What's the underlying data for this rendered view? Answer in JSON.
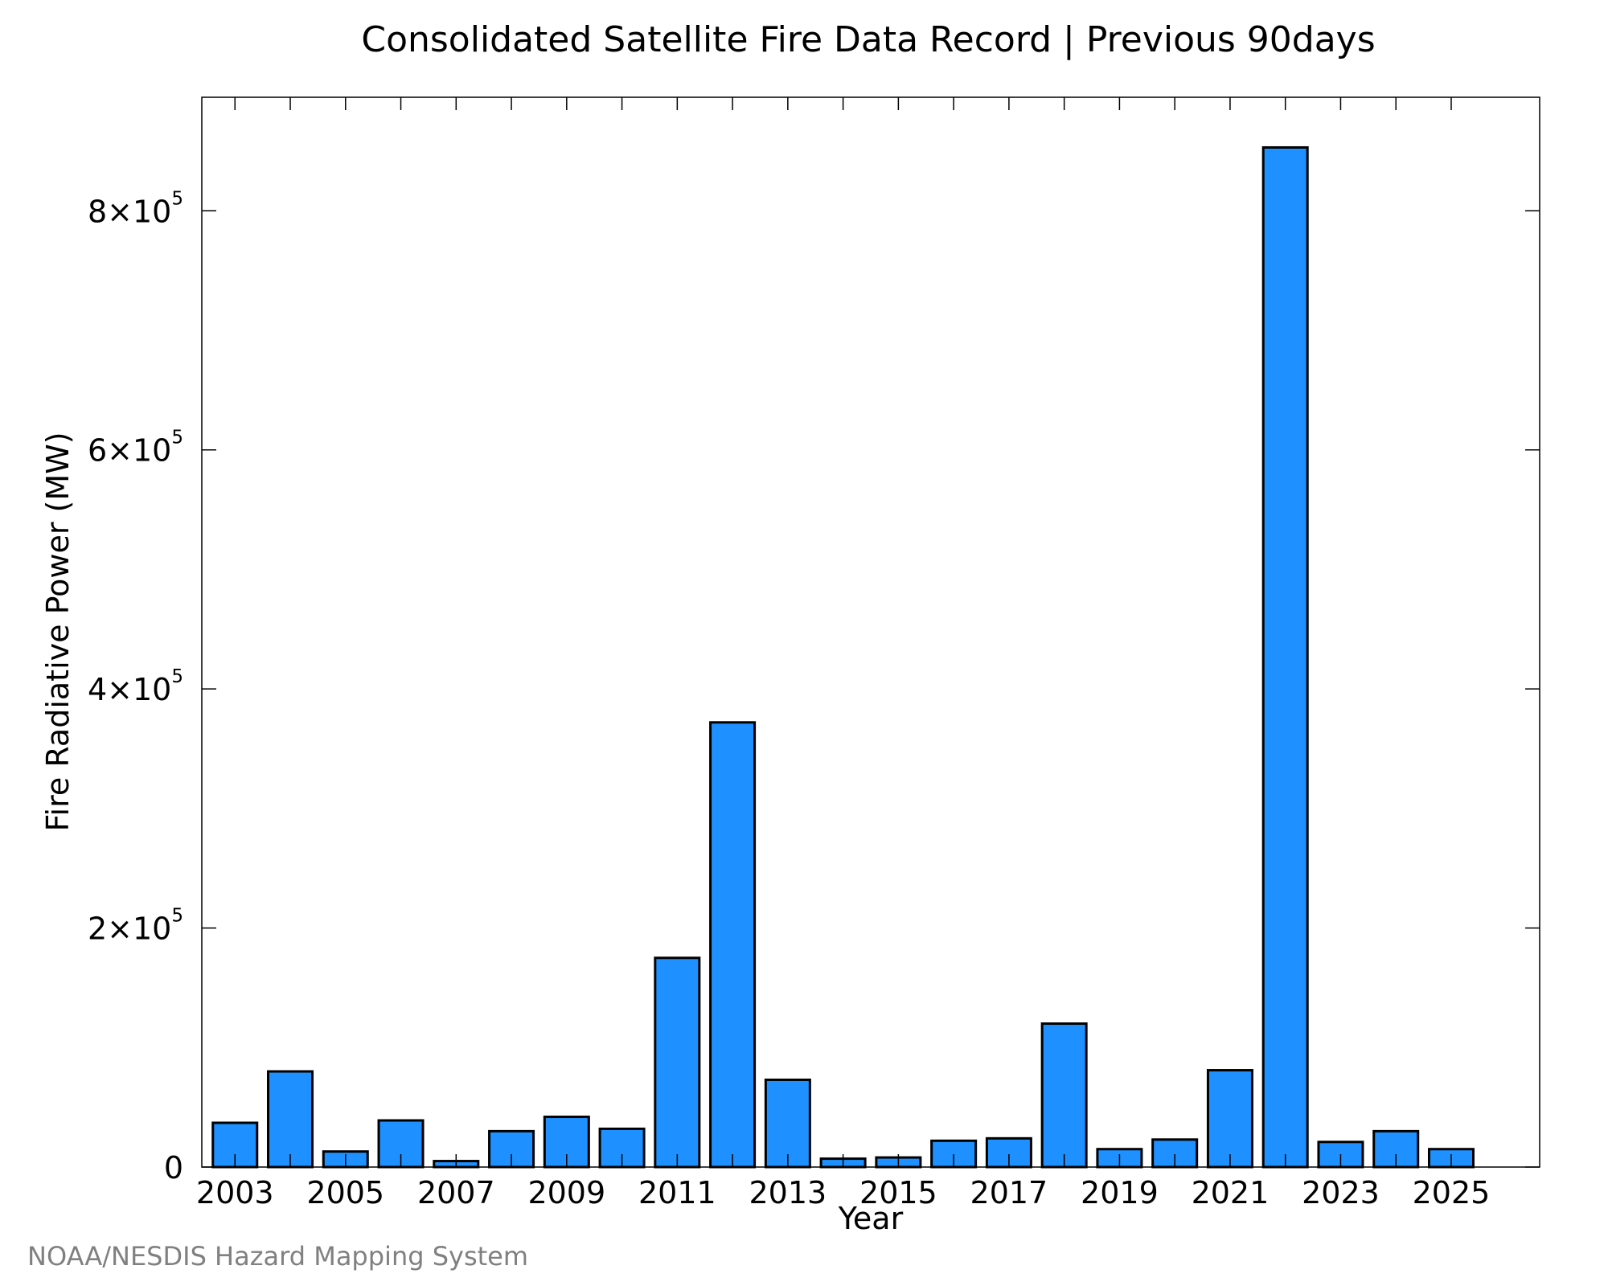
{
  "chart_data": {
    "type": "bar",
    "title": "Consolidated Satellite Fire Data Record | Previous 90days",
    "xlabel": "Year",
    "ylabel": "Fire Radiative Power (MW)",
    "categories": [
      "2003",
      "2004",
      "2005",
      "2006",
      "2007",
      "2008",
      "2009",
      "2010",
      "2011",
      "2012",
      "2013",
      "2014",
      "2015",
      "2016",
      "2017",
      "2018",
      "2019",
      "2020",
      "2021",
      "2022",
      "2023",
      "2024",
      "2025"
    ],
    "values": [
      37000,
      80000,
      13000,
      39000,
      5000,
      30000,
      42000,
      32000,
      175000,
      372000,
      73000,
      7000,
      8000,
      22000,
      24000,
      120000,
      15000,
      23000,
      81000,
      853000,
      21000,
      30000,
      15000
    ],
    "x_tick_labels": [
      "2003",
      "2005",
      "2007",
      "2009",
      "2011",
      "2013",
      "2015",
      "2017",
      "2019",
      "2021",
      "2023",
      "2025"
    ],
    "y_ticks": [
      {
        "value": 0,
        "label": "0"
      },
      {
        "value": 200000,
        "mantissa": "2×10",
        "exponent": "5"
      },
      {
        "value": 400000,
        "mantissa": "4×10",
        "exponent": "5"
      },
      {
        "value": 600000,
        "mantissa": "6×10",
        "exponent": "5"
      },
      {
        "value": 800000,
        "mantissa": "8×10",
        "exponent": "5"
      }
    ],
    "ylim": [
      0,
      895000
    ],
    "xlim": [
      2002.4,
      2026.6
    ],
    "grid": false,
    "bar_color": "#1e90ff",
    "bar_edge_color": "#000000",
    "credit": "NOAA/NESDIS Hazard Mapping System"
  }
}
